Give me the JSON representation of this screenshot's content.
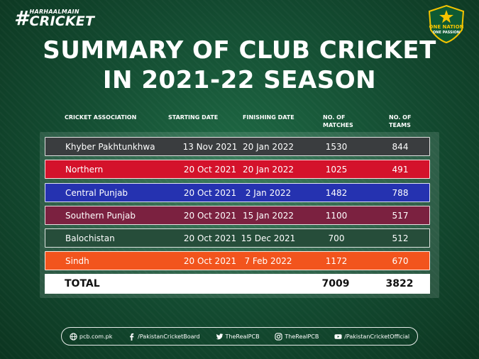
{
  "branding": {
    "hashtag_symbol": "#",
    "hashtag_top": "HARHAALMAIN",
    "hashtag_main": "CRICKET",
    "logo_line1": "ONE NATION",
    "logo_line2": "ONE PASSION"
  },
  "title": {
    "line1": "SUMMARY OF CLUB CRICKET",
    "line2": "IN 2021-22 SEASON"
  },
  "columns": {
    "association": "CRICKET ASSOCIATION",
    "start": "STARTING DATE",
    "finish": "FINISHING DATE",
    "matches_1": "NO. OF",
    "matches_2": "MATCHES",
    "teams_1": "NO. OF",
    "teams_2": "TEAMS"
  },
  "rows": [
    {
      "association": "Khyber Pakhtunkhwa",
      "start": "13 Nov 2021",
      "finish": "20 Jan 2022",
      "matches": "1530",
      "teams": "844",
      "color": "#3a3d3f"
    },
    {
      "association": "Northern",
      "start": "20 Oct 2021",
      "finish": "20 Jan 2022",
      "matches": "1025",
      "teams": "491",
      "color": "#d4122b"
    },
    {
      "association": "Central Punjab",
      "start": "20 Oct 2021",
      "finish": "2 Jan 2022",
      "matches": "1482",
      "teams": "788",
      "color": "#2532b0"
    },
    {
      "association": "Southern Punjab",
      "start": "20 Oct 2021",
      "finish": "15 Jan 2022",
      "matches": "1100",
      "teams": "517",
      "color": "#7b2140"
    },
    {
      "association": "Balochistan",
      "start": "20 Oct 2021",
      "finish": "15 Dec 2021",
      "matches": "700",
      "teams": "512",
      "color": "#264d3a"
    },
    {
      "association": "Sindh",
      "start": "20 Oct 2021",
      "finish": "7 Feb 2022",
      "matches": "1172",
      "teams": "670",
      "color": "#f2541d"
    }
  ],
  "total": {
    "label": "TOTAL",
    "matches": "7009",
    "teams": "3822"
  },
  "footer": {
    "website": "pcb.com.pk",
    "facebook": "/PakistanCricketBoard",
    "twitter": "TheRealPCB",
    "instagram": "TheRealPCB",
    "youtube": "/PakistanCricketOfficial"
  }
}
